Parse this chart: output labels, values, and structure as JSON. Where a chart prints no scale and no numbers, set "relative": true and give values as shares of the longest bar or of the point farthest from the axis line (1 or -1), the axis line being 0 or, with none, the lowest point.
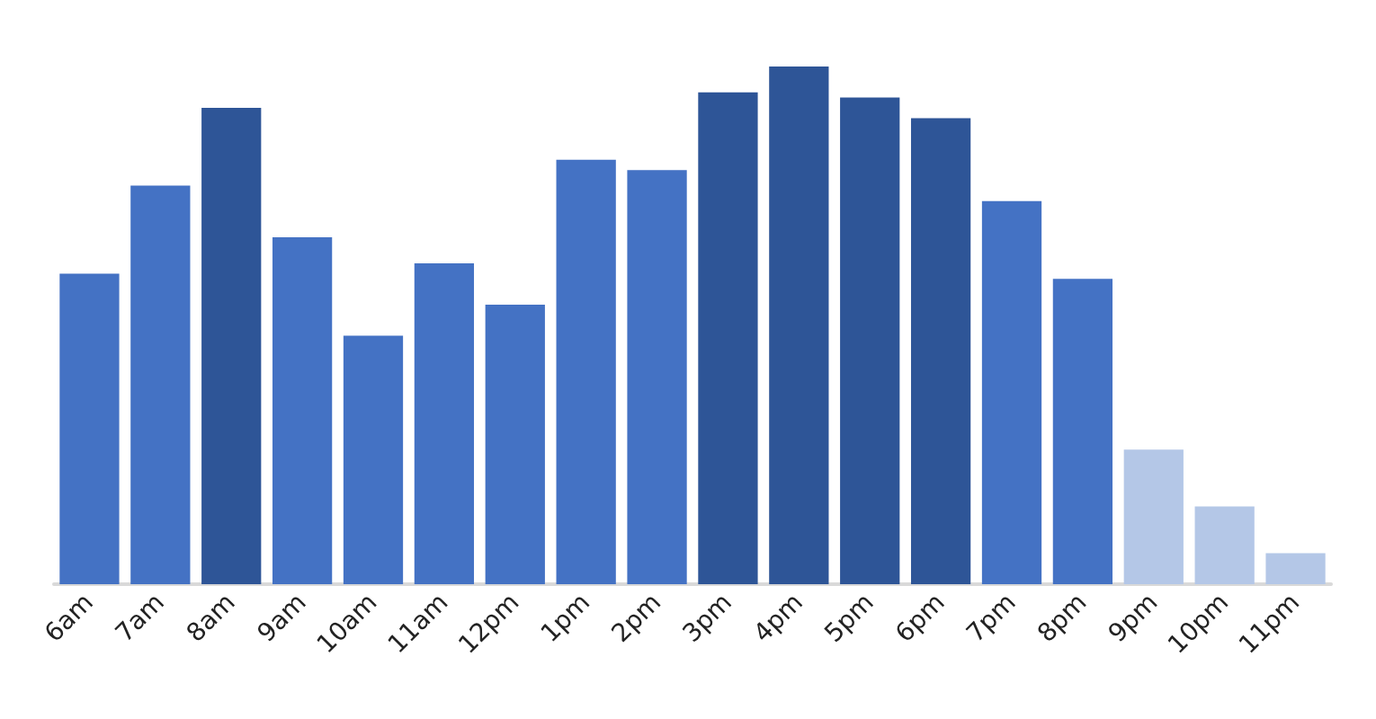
{
  "chart_data": {
    "type": "bar",
    "relative": true,
    "categories": [
      "6am",
      "7am",
      "8am",
      "9am",
      "10am",
      "11am",
      "12pm",
      "1pm",
      "2pm",
      "3pm",
      "4pm",
      "5pm",
      "6pm",
      "7pm",
      "8pm",
      "9pm",
      "10pm",
      "11pm"
    ],
    "values": [
      0.6,
      0.77,
      0.92,
      0.67,
      0.48,
      0.62,
      0.54,
      0.82,
      0.8,
      0.95,
      1,
      0.94,
      0.9,
      0.74,
      0.59,
      0.26,
      0.15,
      0.06
    ],
    "colors": [
      "#4472c4",
      "#4472c4",
      "#2e5597",
      "#4472c4",
      "#4472c4",
      "#4472c4",
      "#4472c4",
      "#4472c4",
      "#4472c4",
      "#2e5597",
      "#2e5597",
      "#2e5597",
      "#2e5597",
      "#4472c4",
      "#4472c4",
      "#b4c7e7",
      "#b4c7e7",
      "#b4c7e7"
    ]
  }
}
